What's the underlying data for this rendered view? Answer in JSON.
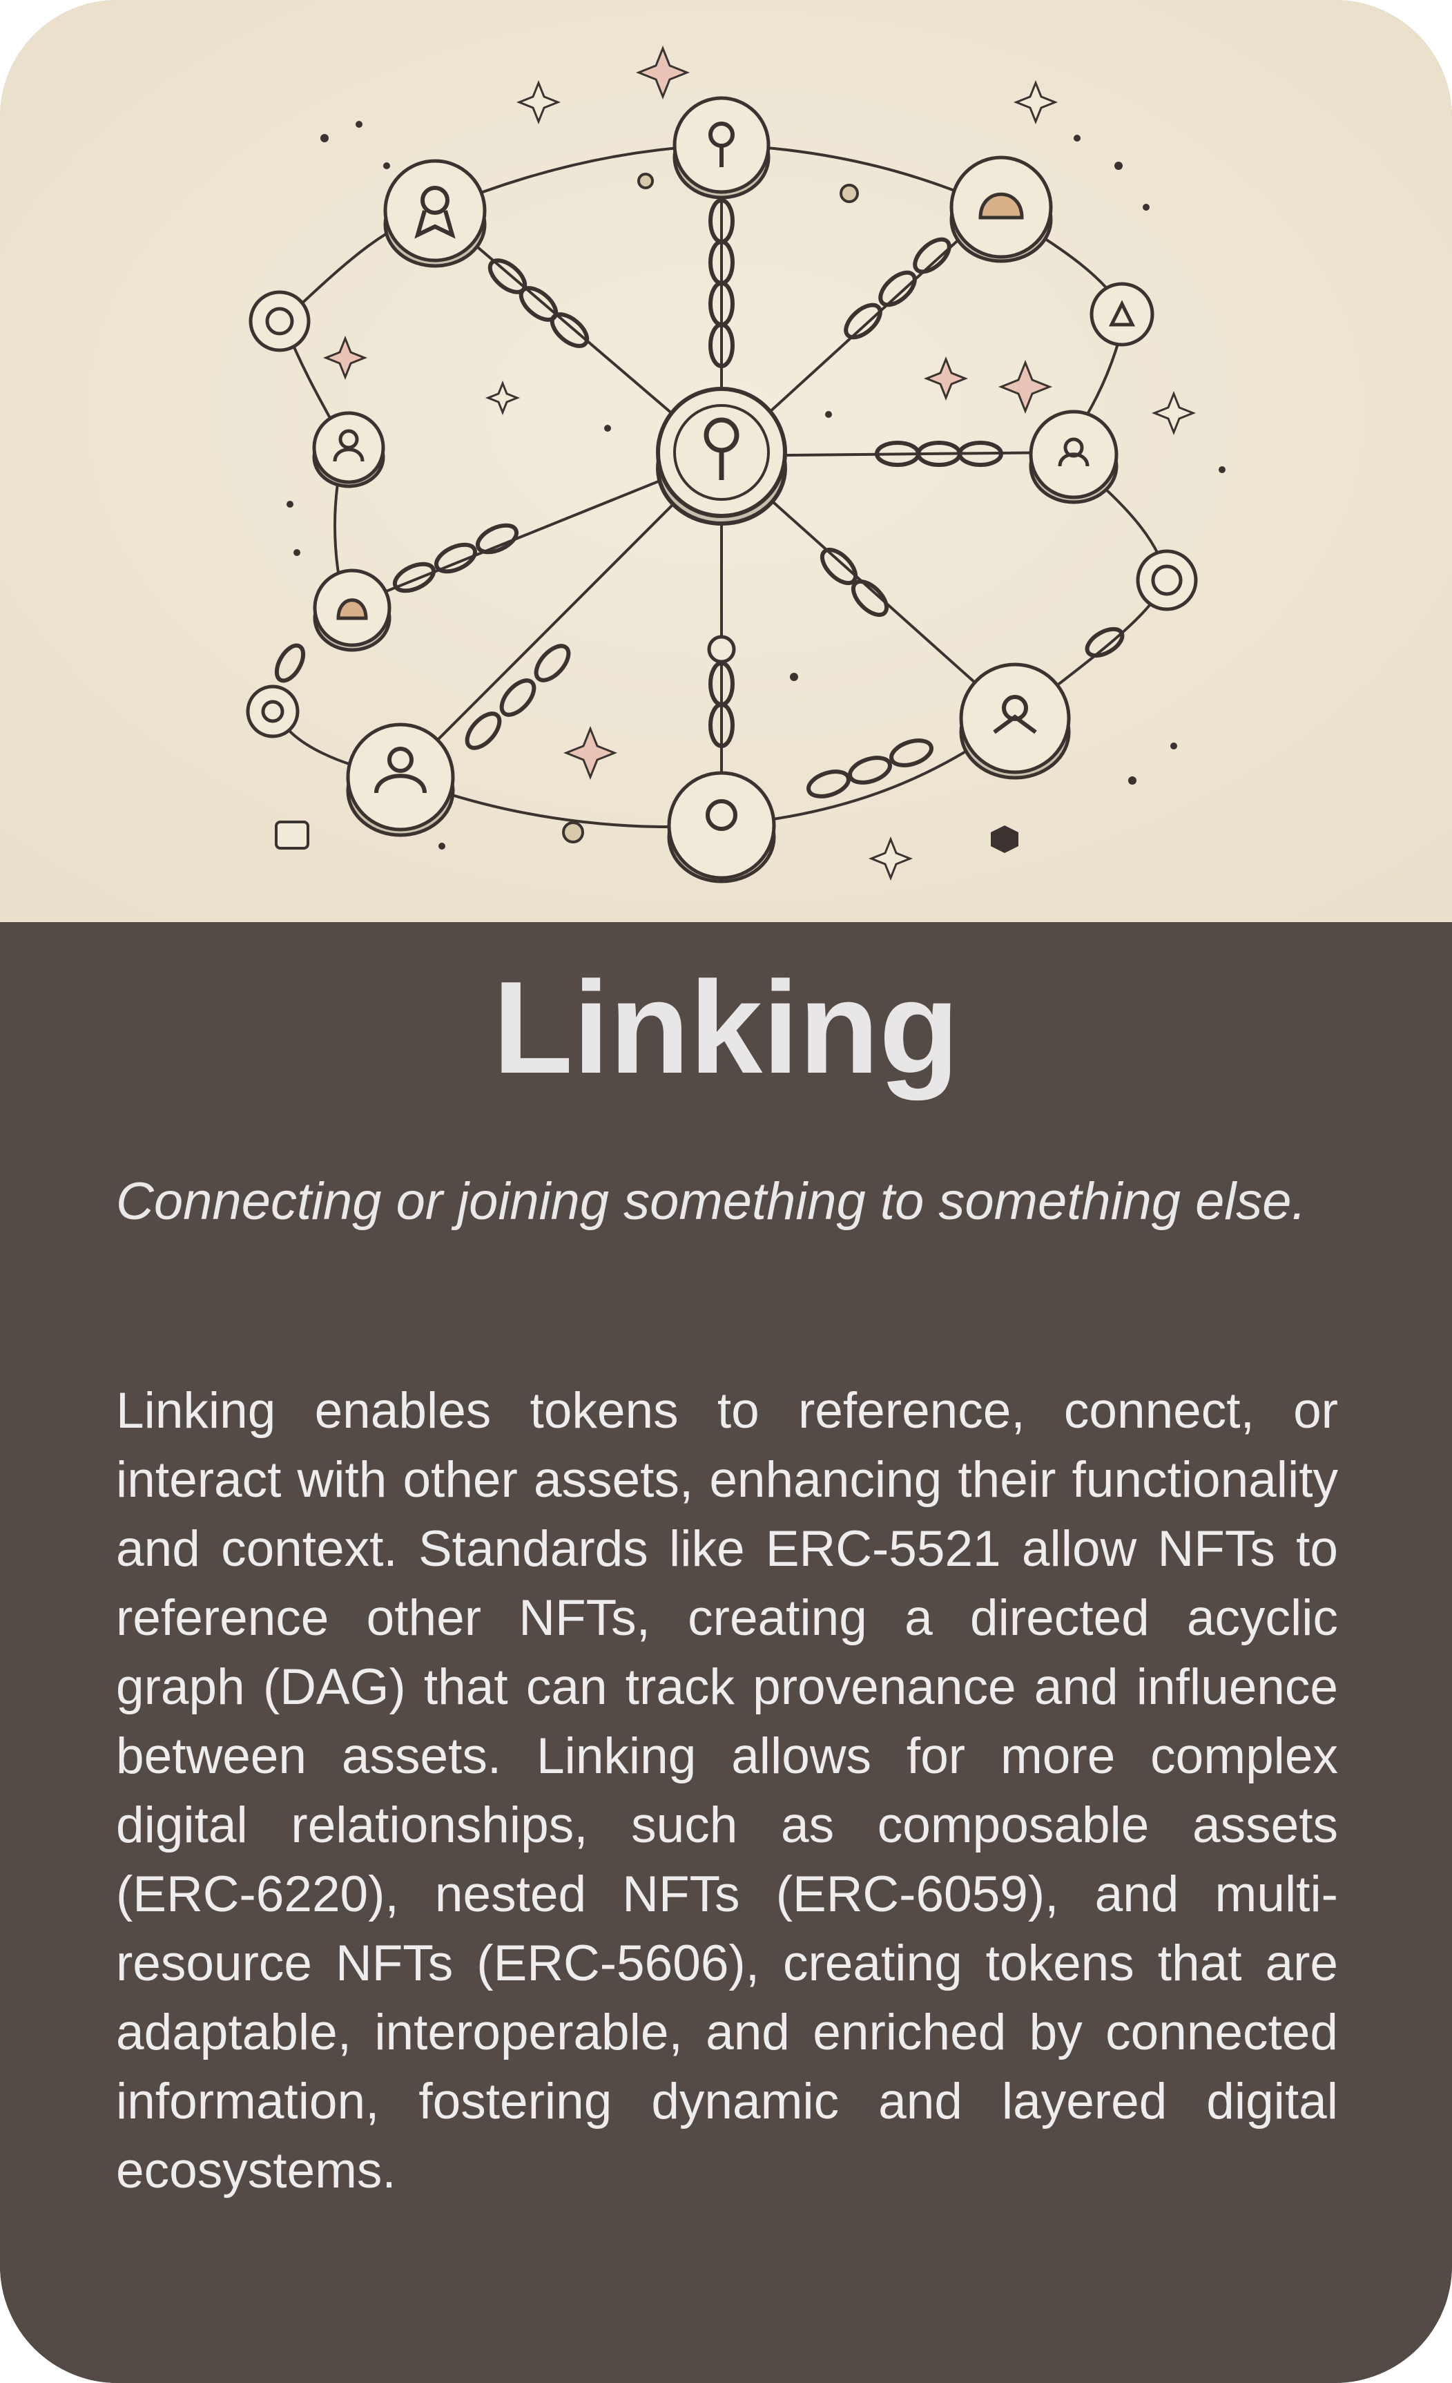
{
  "card": {
    "title": "Linking",
    "subtitle": "Connecting or joining something to something else.",
    "body": "Linking enables tokens to reference, connect, or interact with other assets, enhancing their func­tionality and context. Standards like ERC-5521 allow NFTs to reference other NFTs, creating a directed acyclic graph (DAG) that can track prov­enance and influence between assets. Linking allows for more complex digital relationships, such as composable assets (ERC-6220), nested NFTs (ERC-6059), and multi-resource NFTs (ERC-5606), creating tokens that are adaptable, interoperable, and enriched by connected infor­mation, fostering dynamic and layered digital ecosystems."
  },
  "illustration": {
    "subject": "network of token coins linked by chains",
    "icon_names": [
      "key-icon",
      "user-icon",
      "award-icon",
      "helmet-icon",
      "chain-icon",
      "sparkle-icon"
    ]
  },
  "colors": {
    "art_background": "#efe6d4",
    "panel_background": "#544b46",
    "text": "#ebe8e9",
    "ink": "#3a3330",
    "coin_fill": "#f2ead9",
    "sparkle": "#d49a8a"
  }
}
